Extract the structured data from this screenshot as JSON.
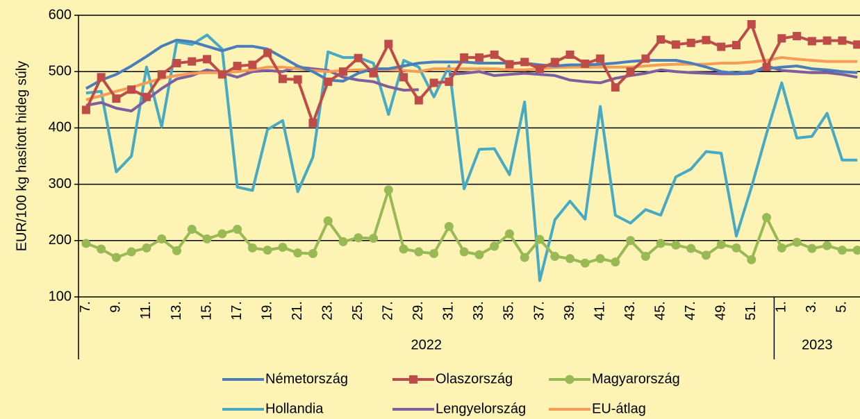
{
  "chart_data": {
    "type": "line",
    "y_axis_label": "EUR/100 kg hasított hideg súly",
    "categories": [
      "7.",
      null,
      "9.",
      null,
      "11.",
      null,
      "13.",
      null,
      "15.",
      null,
      "17.",
      null,
      "19.",
      null,
      "21.",
      null,
      "23.",
      null,
      "25.",
      null,
      "27.",
      null,
      "29.",
      null,
      "31.",
      null,
      "33.",
      null,
      "35.",
      null,
      "37.",
      null,
      "39.",
      null,
      "41.",
      null,
      "43.",
      null,
      "45.",
      null,
      "47.",
      null,
      "49.",
      null,
      "51.",
      null,
      "1.",
      null,
      "3.",
      null,
      "5.",
      null
    ],
    "groups": [
      "2022",
      "2023"
    ],
    "ylim": [
      100,
      600
    ],
    "yticks": [
      100,
      200,
      300,
      400,
      500,
      600
    ],
    "grid": true,
    "legend": "bottom",
    "series": [
      {
        "name": "Németország",
        "color": "#4a7ebb",
        "marker": "none",
        "values": [
          470,
          485,
          495,
          510,
          527,
          545,
          556,
          553,
          545,
          537,
          545,
          545,
          540,
          525,
          510,
          500,
          485,
          483,
          497,
          505,
          505,
          510,
          515,
          517,
          517,
          517,
          515,
          515,
          515,
          515,
          512,
          510,
          512,
          512,
          513,
          515,
          518,
          520,
          520,
          520,
          515,
          508,
          500,
          497,
          500,
          505,
          508,
          510,
          505,
          503,
          500,
          498
        ]
      },
      {
        "name": "Olaszország",
        "color": "#be4b48",
        "marker": "square",
        "values": [
          432,
          490,
          452,
          468,
          455,
          495,
          515,
          518,
          522,
          495,
          510,
          512,
          533,
          487,
          486,
          409,
          482,
          500,
          524,
          497,
          549,
          490,
          449,
          480,
          482,
          525,
          525,
          530,
          513,
          517,
          505,
          517,
          530,
          514,
          523,
          472,
          500,
          523,
          557,
          548,
          551,
          556,
          544,
          547,
          584,
          508,
          559,
          563,
          554,
          555,
          555,
          548
        ]
      },
      {
        "name": "Magyarország",
        "color": "#98b954",
        "marker": "circle",
        "values": [
          195,
          185,
          170,
          180,
          187,
          203,
          182,
          220,
          203,
          212,
          220,
          187,
          183,
          188,
          178,
          177,
          235,
          198,
          205,
          204,
          290,
          185,
          180,
          177,
          225,
          180,
          175,
          190,
          212,
          170,
          202,
          172,
          168,
          160,
          168,
          162,
          200,
          172,
          195,
          192,
          186,
          174,
          193,
          187,
          166,
          241,
          187,
          197,
          186,
          191,
          183,
          183
        ]
      },
      {
        "name": "Hollandia",
        "color": "#46aac5",
        "marker": "none",
        "values": [
          462,
          465,
          322,
          350,
          508,
          402,
          553,
          548,
          565,
          540,
          295,
          289,
          397,
          413,
          287,
          348,
          535,
          525,
          525,
          515,
          424,
          520,
          508,
          455,
          510,
          292,
          362,
          363,
          317,
          446,
          129,
          237,
          270,
          238,
          438,
          245,
          231,
          255,
          245,
          313,
          327,
          358,
          355,
          208,
          295,
          390,
          480,
          382,
          385,
          426,
          343,
          343
        ]
      },
      {
        "name": "Lengyelország",
        "color": "#7d5fa0",
        "marker": "none",
        "values": [
          440,
          445,
          435,
          430,
          450,
          470,
          487,
          493,
          503,
          498,
          490,
          500,
          502,
          500,
          508,
          505,
          502,
          490,
          485,
          482,
          473,
          467,
          468,
          null,
          495,
          497,
          500,
          493,
          495,
          497,
          495,
          493,
          485,
          482,
          480,
          488,
          493,
          497,
          503,
          500,
          498,
          497,
          496,
          496,
          497,
          510,
          502,
          500,
          498,
          498,
          495,
          490
        ]
      },
      {
        "name": "EU-átlag",
        "color": "#f59d56",
        "marker": "none",
        "values": [
          450,
          457,
          465,
          472,
          480,
          488,
          493,
          497,
          498,
          498,
          500,
          503,
          508,
          508,
          505,
          502,
          500,
          502,
          503,
          503,
          503,
          502,
          500,
          505,
          505,
          505,
          505,
          505,
          503,
          503,
          505,
          507,
          508,
          508,
          508,
          508,
          508,
          510,
          512,
          513,
          513,
          513,
          515,
          515,
          517,
          520,
          525,
          522,
          520,
          518,
          518,
          518
        ]
      }
    ]
  }
}
